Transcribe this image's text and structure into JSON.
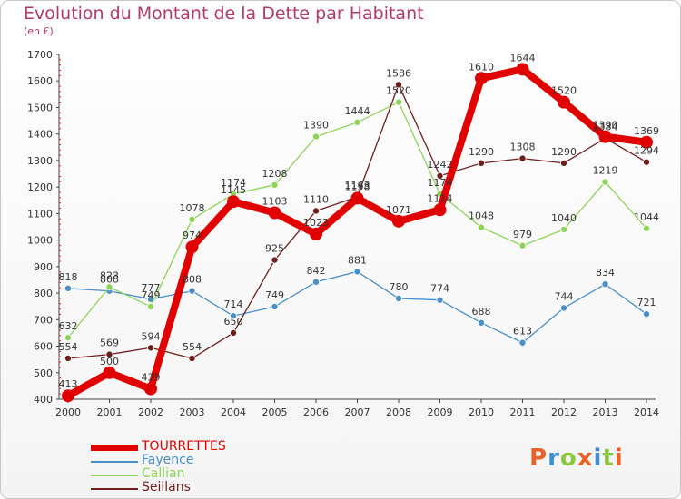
{
  "title": "Evolution du Montant de la Dette par Habitant",
  "subtitle": "(en €)",
  "logo": {
    "letters": [
      "P",
      "r",
      "o",
      "x",
      "i",
      "t",
      "i"
    ],
    "colors": [
      "#e8622a",
      "#3a8fd6",
      "#8cc63f",
      "#e8622a",
      "#3a8fd6",
      "#8cc63f",
      "#e8622a"
    ]
  },
  "chart_data": {
    "type": "line",
    "title": "Evolution du Montant de la Dette par Habitant",
    "ylabel": "(en €)",
    "xlabel": "",
    "x": [
      "2000",
      "2001",
      "2002",
      "2003",
      "2004",
      "2005",
      "2006",
      "2007",
      "2008",
      "2009",
      "2010",
      "2011",
      "2012",
      "2013",
      "2014"
    ],
    "ylim": [
      400,
      1700
    ],
    "yticks": [
      "400",
      "500",
      "600",
      "700",
      "800",
      "900",
      "1000",
      "1100",
      "1200",
      "1300",
      "1400",
      "1500",
      "1600",
      "1700"
    ],
    "grid": false,
    "legend_position": "bottom-left",
    "series": [
      {
        "name": "Fayence",
        "color": "#4a8fc8",
        "values": [
          818,
          808,
          777,
          808,
          714,
          749,
          842,
          881,
          780,
          774,
          688,
          613,
          744,
          834,
          721
        ],
        "labels": [
          "818",
          "808",
          "777",
          "808",
          "714",
          "749",
          "842",
          "881",
          "780",
          "774",
          "688",
          "613",
          "744",
          "834",
          "721"
        ]
      },
      {
        "name": "Callian",
        "color": "#8ed45a",
        "values": [
          632,
          823,
          749,
          1078,
          1174,
          1208,
          1390,
          1444,
          1520,
          1174,
          1048,
          979,
          1040,
          1219,
          1044
        ],
        "labels": [
          "632",
          "823",
          "749",
          "1078",
          "1174",
          "1208",
          "1390",
          "1444",
          "1520",
          "1174",
          "1048",
          "979",
          "1040",
          "1219",
          "1044"
        ]
      },
      {
        "name": "Seillans",
        "color": "#6e1e1e",
        "values": [
          554,
          569,
          594,
          554,
          650,
          925,
          1110,
          1163,
          1586,
          1242,
          1290,
          1308,
          1290,
          1384,
          1294
        ],
        "labels": [
          "554",
          "569",
          "594",
          "554",
          "650",
          "925",
          "1110",
          "1163",
          "1586",
          "1242",
          "1290",
          "1308",
          "1290",
          "1384",
          "1294"
        ]
      },
      {
        "name": "TOURRETTES",
        "color": "#e00000",
        "values": [
          413,
          500,
          439,
          974,
          1145,
          1103,
          1023,
          1158,
          1071,
          1114,
          1610,
          1644,
          1520,
          1390,
          1369
        ],
        "labels": [
          "413",
          "500",
          "439",
          "974",
          "1145",
          "1103",
          "1023",
          "1158",
          "1071",
          "1114",
          "1610",
          "1644",
          "1520",
          "1390",
          "1369"
        ]
      }
    ]
  },
  "legend": [
    {
      "name": "TOURRETTES",
      "color": "#e00000",
      "thick": true
    },
    {
      "name": "Fayence",
      "color": "#4a8fc8",
      "thick": false
    },
    {
      "name": "Callian",
      "color": "#8ed45a",
      "thick": false
    },
    {
      "name": "Seillans",
      "color": "#6e1e1e",
      "thick": false
    }
  ]
}
